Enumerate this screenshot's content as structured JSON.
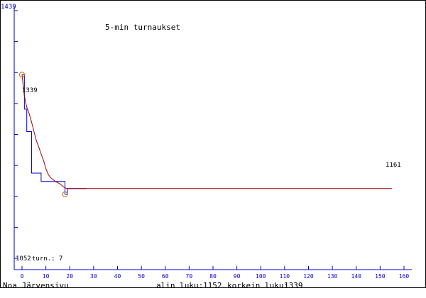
{
  "chart_data": {
    "type": "line",
    "title": "5-min turnaukset",
    "xlim": [
      0,
      160
    ],
    "ylim": [
      1052,
      1439
    ],
    "y_max_label": "1439",
    "y_min_label": "1052",
    "x_ticks": [
      0,
      10,
      20,
      30,
      40,
      50,
      60,
      70,
      80,
      90,
      100,
      110,
      120,
      130,
      140,
      150,
      160
    ],
    "y_tick_count": 8,
    "grid": false,
    "turn_label": "turn.: 7",
    "start_label": "1339",
    "end_label": "1161",
    "series": [
      {
        "color": "#0000cc",
        "style": "step",
        "x": [
          0,
          1,
          2,
          3,
          4,
          5,
          6,
          7,
          8,
          9,
          10,
          11,
          12,
          13,
          14,
          15,
          16,
          17,
          18,
          19,
          20,
          21,
          22,
          23,
          24,
          25,
          26,
          27
        ],
        "y": [
          1339,
          1285,
          1250,
          1250,
          1185,
          1185,
          1185,
          1185,
          1172,
          1172,
          1172,
          1172,
          1172,
          1172,
          1172,
          1172,
          1172,
          1172,
          1152,
          1161,
          1161,
          1161,
          1161,
          1161,
          1161,
          1161,
          1161,
          1161
        ]
      },
      {
        "color": "#990000",
        "style": "line",
        "x": [
          0,
          1,
          2,
          3,
          4,
          5,
          6,
          7,
          8,
          9,
          10,
          11,
          12,
          13,
          14,
          15,
          16,
          17,
          18,
          19,
          20,
          30,
          40,
          50,
          60,
          70,
          80,
          90,
          100,
          110,
          120,
          130,
          140,
          150,
          155
        ],
        "y": [
          1339,
          1305,
          1288,
          1278,
          1265,
          1250,
          1236,
          1226,
          1215,
          1205,
          1192,
          1183,
          1178,
          1175,
          1172,
          1170,
          1168,
          1165,
          1162,
          1161,
          1161,
          1161,
          1161,
          1161,
          1161,
          1161,
          1161,
          1161,
          1161,
          1161,
          1161,
          1161,
          1161,
          1161,
          1161
        ]
      }
    ],
    "markers": [
      {
        "x": 0,
        "y": 1339
      },
      {
        "x": 18,
        "y": 1152
      }
    ]
  },
  "footer": {
    "author": "Noa Järvensivu",
    "min_label": "alin luku:",
    "min_value": "1152",
    "max_label": "korkein luku:",
    "max_value": "1339"
  },
  "colors": {
    "axis": "#0000cc",
    "tick_text": "#0000cc",
    "blue_line": "#0000cc",
    "red_line": "#990000",
    "marker": "#cc6600"
  }
}
